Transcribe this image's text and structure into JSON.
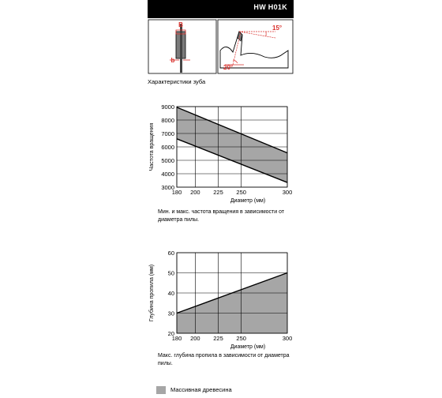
{
  "header": {
    "title": "HW H01K"
  },
  "tooth_diagram": {
    "label_B": "B",
    "label_b": "b",
    "angle_top": "15°",
    "angle_bottom": "20°",
    "caption": "Характеристики зуба"
  },
  "chart_data": [
    {
      "type": "area",
      "ylabel": "Частота вращения",
      "xlabel": "Диаметр (мм)",
      "x_ticks": [
        "180",
        "200",
        "225",
        "250",
        "300"
      ],
      "y_ticks": [
        "3000",
        "4000",
        "5000",
        "6000",
        "7000",
        "8000",
        "9000"
      ],
      "xlim": [
        180,
        300
      ],
      "ylim": [
        3000,
        9000
      ],
      "x_tick_values": [
        180,
        200,
        225,
        250,
        300
      ],
      "y_tick_values": [
        3000,
        4000,
        5000,
        6000,
        7000,
        8000,
        9000
      ],
      "series": [
        {
          "x": [
            180,
            300
          ],
          "values": [
            8950,
            5550
          ]
        },
        {
          "x": [
            180,
            300
          ],
          "values": [
            6600,
            3350
          ]
        }
      ],
      "grid": true,
      "caption": "Мин. и макс. частота вращения в зависимости от диаметра пилы."
    },
    {
      "type": "area",
      "ylabel": "Глубина пропила (мм)",
      "xlabel": "Диаметр (мм)",
      "x_ticks": [
        "180",
        "200",
        "225",
        "250",
        "300"
      ],
      "y_ticks": [
        "20",
        "30",
        "40",
        "50",
        "60"
      ],
      "xlim": [
        180,
        300
      ],
      "ylim": [
        20,
        60
      ],
      "x_tick_values": [
        180,
        200,
        225,
        250,
        300
      ],
      "y_tick_values": [
        20,
        30,
        40,
        50,
        60
      ],
      "series": [
        {
          "x": [
            180,
            300
          ],
          "values": [
            30,
            50
          ]
        }
      ],
      "grid": true,
      "caption": "Макс. глубина пропила в зависимости от диаметра пилы."
    }
  ],
  "legend": {
    "label": "Массивная древесина",
    "color": "#a6a6a6"
  },
  "colors": {
    "fill": "#a6a6a6",
    "line": "#000000",
    "header": "#000000",
    "accent": "#d9302c"
  }
}
